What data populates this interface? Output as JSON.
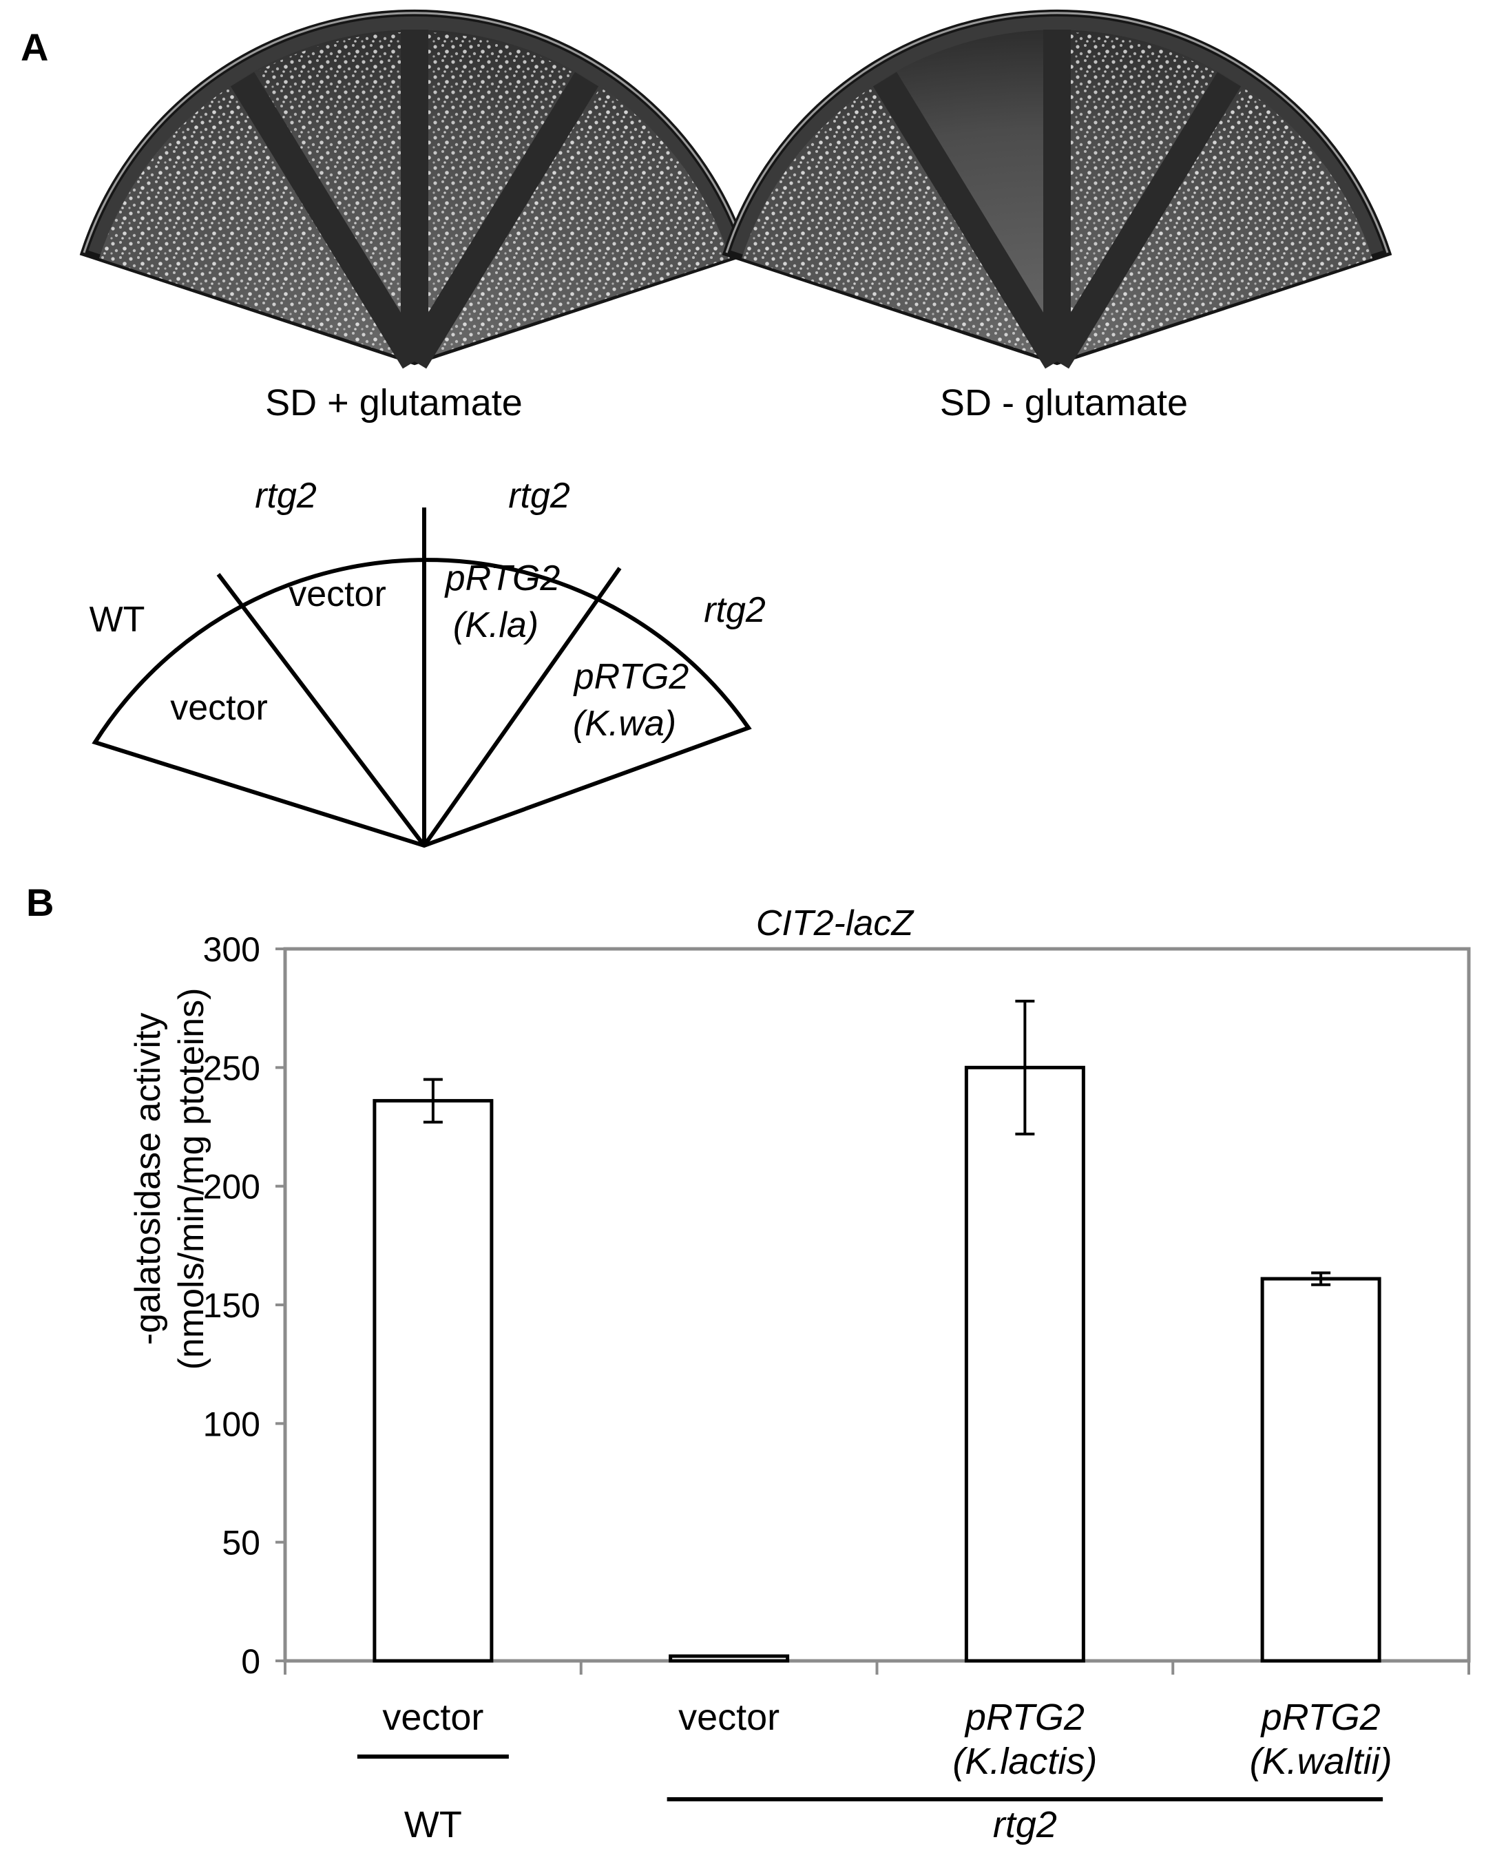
{
  "panel_a": {
    "label": "A",
    "plate_left_caption": "SD + glutamate",
    "plate_right_caption": "SD - glutamate",
    "schematic": {
      "sectors": [
        {
          "strain": "WT",
          "plasmid": "vector",
          "plasmid_line2": ""
        },
        {
          "strain": "rtg2",
          "plasmid": "vector",
          "plasmid_line2": ""
        },
        {
          "strain": "rtg2",
          "plasmid": "pRTG2",
          "plasmid_line2": "(K.la)"
        },
        {
          "strain": "rtg2",
          "plasmid": "pRTG2",
          "plasmid_line2": "(K.wa)"
        }
      ]
    }
  },
  "panel_b": {
    "label": "B"
  },
  "chart_data": {
    "type": "bar",
    "title": "CIT2-lacZ",
    "ylabel_line1": "-galatosidase activity",
    "ylabel_line2": "(nmols/min/mg ptoteins)",
    "xlabel": "",
    "ylim": [
      0,
      300
    ],
    "yticks": [
      0,
      50,
      100,
      150,
      200,
      250,
      300
    ],
    "grid": false,
    "categories": [
      {
        "line1": "vector",
        "line2": ""
      },
      {
        "line1": "vector",
        "line2": ""
      },
      {
        "line1": "pRTG2",
        "line2": "(K.lactis)"
      },
      {
        "line1": "pRTG2",
        "line2": "(K.waltii)"
      }
    ],
    "values": [
      236,
      2,
      250,
      161
    ],
    "errors": [
      9,
      0,
      28,
      2.5
    ],
    "groups": [
      {
        "label": "WT",
        "from": 0,
        "to": 0
      },
      {
        "label": "rtg2",
        "from": 1,
        "to": 3
      }
    ]
  }
}
